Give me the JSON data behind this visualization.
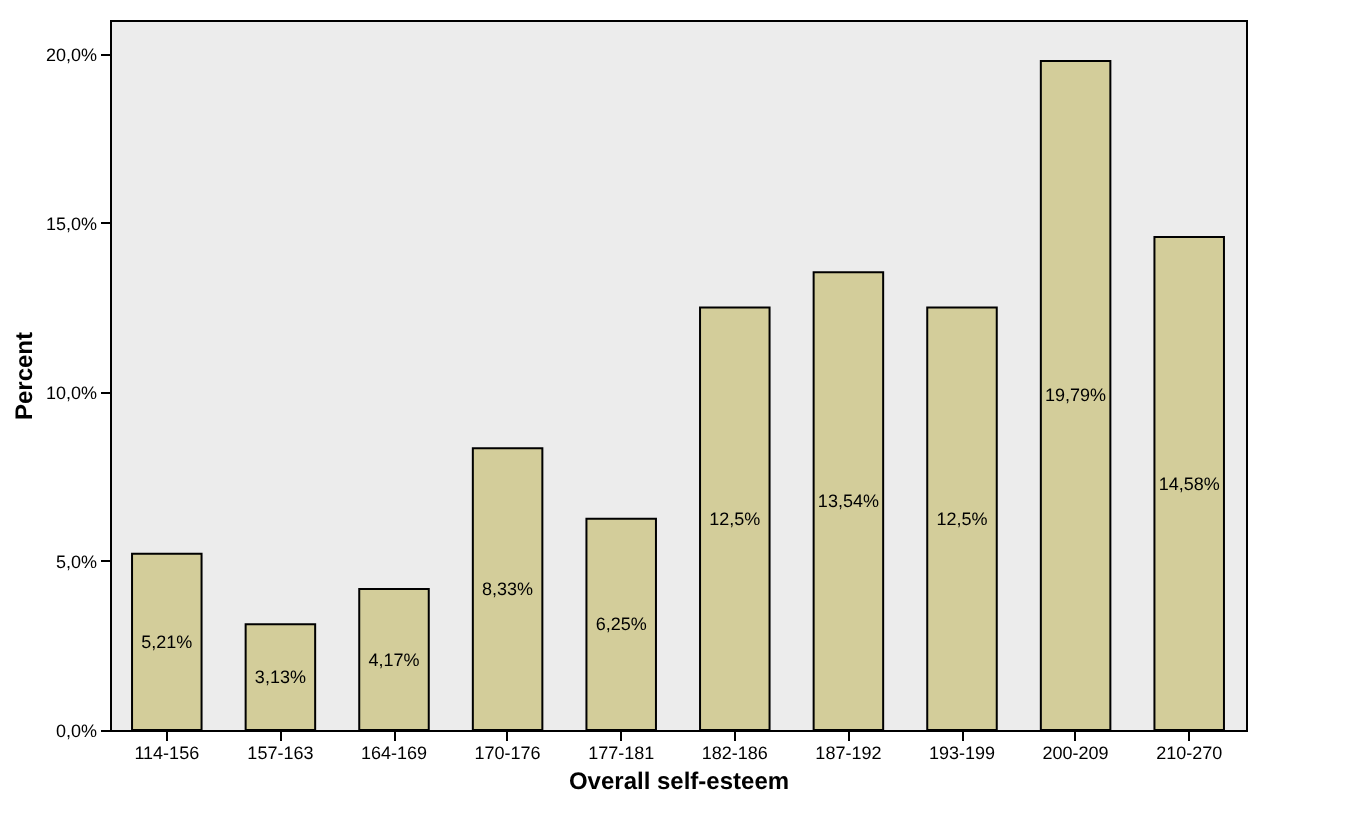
{
  "chart_data": {
    "type": "bar",
    "xlabel": "Overall self-esteem",
    "ylabel": "Percent",
    "categories": [
      "114-156",
      "157-163",
      "164-169",
      "170-176",
      "177-181",
      "182-186",
      "187-192",
      "193-199",
      "200-209",
      "210-270"
    ],
    "values": [
      5.21,
      3.13,
      4.17,
      8.33,
      6.25,
      12.5,
      13.54,
      12.5,
      19.79,
      14.58
    ],
    "value_labels": [
      "5,21%",
      "3,13%",
      "4,17%",
      "8,33%",
      "6,25%",
      "12,5%",
      "13,54%",
      "12,5%",
      "19,79%",
      "14,58%"
    ],
    "color": "#d3cd9a",
    "ylim": [
      0,
      21
    ],
    "yticks": [
      {
        "value": 0,
        "label": "0,0%"
      },
      {
        "value": 5,
        "label": "5,0%"
      },
      {
        "value": 10,
        "label": "10,0%"
      },
      {
        "value": 15,
        "label": "15,0%"
      },
      {
        "value": 20,
        "label": "20,0%"
      }
    ],
    "grid": false
  }
}
